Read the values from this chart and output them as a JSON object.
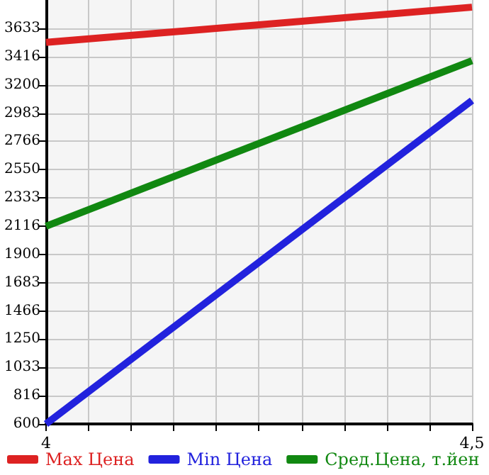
{
  "chart_data": {
    "type": "line",
    "x": [
      4,
      4.5
    ],
    "series": [
      {
        "name": "Max Цена",
        "color": "#dd2222",
        "values": [
          3525,
          3795
        ]
      },
      {
        "name": "Min Цена",
        "color": "#2222dd",
        "values": [
          600,
          3080
        ]
      },
      {
        "name": "Сред.Цена, т.йен",
        "color": "#118811",
        "values": [
          2116,
          3385
        ]
      }
    ],
    "xlim": [
      4,
      4.5
    ],
    "xticks": [
      4,
      {
        "value": 4.05,
        "label": null
      },
      {
        "value": 4.1,
        "label": null
      },
      {
        "value": 4.15,
        "label": null
      },
      {
        "value": 4.2,
        "label": null
      },
      {
        "value": 4.25,
        "label": null
      },
      {
        "value": 4.3,
        "label": null
      },
      {
        "value": 4.35,
        "label": null
      },
      {
        "value": 4.4,
        "label": null
      },
      {
        "value": 4.45,
        "label": null
      },
      {
        "value": 4.5,
        "label": "4,5"
      }
    ],
    "ylim": [
      600,
      3850
    ],
    "yticks": [
      600,
      816,
      1033,
      1250,
      1466,
      1683,
      1900,
      2116,
      2333,
      2550,
      2766,
      2983,
      3200,
      3416,
      3633
    ],
    "grid": true,
    "legend": "bottom",
    "marker": "none",
    "line_style": "solid"
  }
}
